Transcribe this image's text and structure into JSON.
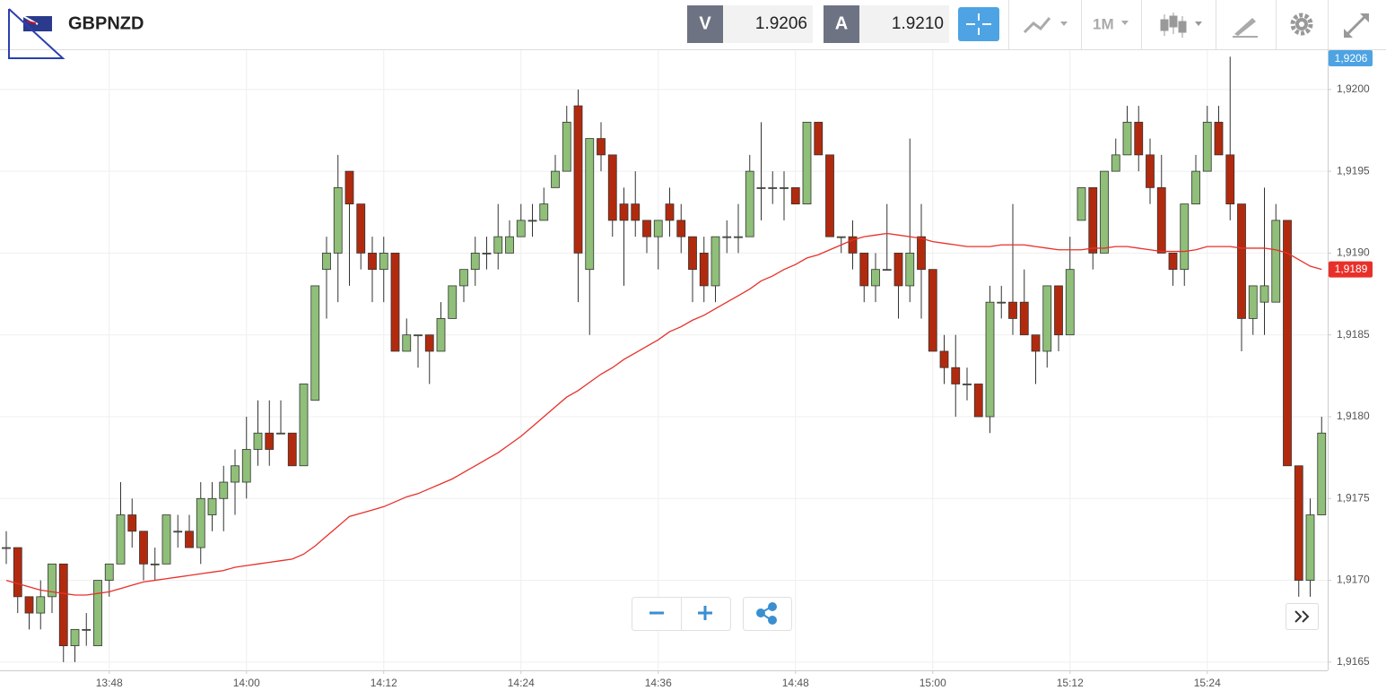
{
  "chart_data": {
    "type": "candlestick",
    "title": "GBPNZD",
    "x": [
      "13:39",
      "13:40",
      "13:41",
      "13:42",
      "13:43",
      "13:44",
      "13:45",
      "13:46",
      "13:47",
      "13:48",
      "13:49",
      "13:50",
      "13:51",
      "13:52",
      "13:53",
      "13:54",
      "13:55",
      "13:56",
      "13:57",
      "13:58",
      "13:59",
      "14:00",
      "14:01",
      "14:02",
      "14:03",
      "14:04",
      "14:05",
      "14:06",
      "14:07",
      "14:08",
      "14:09",
      "14:10",
      "14:11",
      "14:12",
      "14:13",
      "14:14",
      "14:15",
      "14:16",
      "14:17",
      "14:18",
      "14:19",
      "14:20",
      "14:21",
      "14:22",
      "14:23",
      "14:24",
      "14:25",
      "14:26",
      "14:27",
      "14:28",
      "14:29",
      "14:30",
      "14:31",
      "14:32",
      "14:33",
      "14:34",
      "14:35",
      "14:36",
      "14:37",
      "14:38",
      "14:39",
      "14:40",
      "14:41",
      "14:42",
      "14:43",
      "14:44",
      "14:45",
      "14:46",
      "14:47",
      "14:48",
      "14:49",
      "14:50",
      "14:51",
      "14:52",
      "14:53",
      "14:54",
      "14:55",
      "14:56",
      "14:57",
      "14:58",
      "14:59",
      "15:00",
      "15:01",
      "15:02",
      "15:03",
      "15:04",
      "15:05",
      "15:06",
      "15:07",
      "15:08",
      "15:09",
      "15:10",
      "15:11",
      "15:12",
      "15:13",
      "15:14",
      "15:15",
      "15:16",
      "15:17",
      "15:18",
      "15:19",
      "15:20",
      "15:21",
      "15:22",
      "15:23",
      "15:24",
      "15:25",
      "15:26",
      "15:27",
      "15:28",
      "15:29",
      "15:30",
      "15:31",
      "15:32",
      "15:33",
      "15:34"
    ],
    "open": [
      1.9172,
      1.9172,
      1.9169,
      1.9168,
      1.9169,
      1.9171,
      1.9166,
      1.9167,
      1.9166,
      1.917,
      1.9171,
      1.9174,
      1.9173,
      1.9171,
      1.9171,
      1.9173,
      1.9173,
      1.9172,
      1.9174,
      1.9175,
      1.9176,
      1.9176,
      1.9178,
      1.9179,
      1.9179,
      1.9179,
      1.9177,
      1.9181,
      1.9189,
      1.919,
      1.9195,
      1.9193,
      1.919,
      1.9189,
      1.919,
      1.9184,
      1.9185,
      1.9185,
      1.9184,
      1.9186,
      1.9188,
      1.9189,
      1.919,
      1.919,
      1.919,
      1.9191,
      1.9192,
      1.9192,
      1.9194,
      1.9195,
      1.9199,
      1.9189,
      1.9197,
      1.9196,
      1.9193,
      1.9193,
      1.9192,
      1.9191,
      1.9193,
      1.9192,
      1.9191,
      1.919,
      1.9188,
      1.9191,
      1.9191,
      1.9191,
      1.9194,
      1.9194,
      1.9194,
      1.9194,
      1.9193,
      1.9198,
      1.9196,
      1.9191,
      1.9191,
      1.919,
      1.9188,
      1.9189,
      1.919,
      1.9188,
      1.9191,
      1.9189,
      1.9184,
      1.9183,
      1.9182,
      1.9182,
      1.918,
      1.9187,
      1.9187,
      1.9187,
      1.9185,
      1.9184,
      1.9188,
      1.9185,
      1.9192,
      1.9194,
      1.919,
      1.9195,
      1.9196,
      1.9198,
      1.9196,
      1.9194,
      1.919,
      1.9189,
      1.9193,
      1.9195,
      1.9198,
      1.9196,
      1.9193,
      1.9186,
      1.9187,
      1.9187,
      1.9192,
      1.9177,
      1.917,
      1.9174
    ],
    "high": [
      1.9173,
      1.9172,
      1.9169,
      1.917,
      1.9171,
      1.9171,
      1.9167,
      1.9168,
      1.917,
      1.9171,
      1.9176,
      1.9175,
      1.9173,
      1.9172,
      1.9174,
      1.9174,
      1.9174,
      1.9176,
      1.9176,
      1.9177,
      1.9178,
      1.918,
      1.9181,
      1.9181,
      1.9181,
      1.9179,
      1.9182,
      1.9188,
      1.9191,
      1.9196,
      1.9195,
      1.9193,
      1.9191,
      1.9191,
      1.919,
      1.9186,
      1.9185,
      1.9185,
      1.9187,
      1.9188,
      1.9189,
      1.9191,
      1.9191,
      1.9193,
      1.9192,
      1.9193,
      1.9193,
      1.9194,
      1.9196,
      1.9199,
      1.92,
      1.9197,
      1.9198,
      1.9196,
      1.9194,
      1.9195,
      1.9192,
      1.9192,
      1.9194,
      1.9193,
      1.9191,
      1.9191,
      1.9191,
      1.9192,
      1.9193,
      1.9196,
      1.9198,
      1.9195,
      1.9195,
      1.9194,
      1.9198,
      1.9198,
      1.9196,
      1.9191,
      1.9192,
      1.919,
      1.919,
      1.9193,
      1.919,
      1.9197,
      1.9193,
      1.9189,
      1.9185,
      1.9185,
      1.9183,
      1.9182,
      1.9188,
      1.9188,
      1.9193,
      1.9189,
      1.9185,
      1.9188,
      1.9188,
      1.9191,
      1.9194,
      1.9194,
      1.9195,
      1.9197,
      1.9199,
      1.9199,
      1.9197,
      1.9196,
      1.919,
      1.9193,
      1.9196,
      1.9199,
      1.9199,
      1.9202,
      1.9193,
      1.9188,
      1.9194,
      1.9193,
      1.9192,
      1.9177,
      1.9175,
      1.918
    ],
    "low": [
      1.9171,
      1.9168,
      1.9167,
      1.9167,
      1.9168,
      1.9165,
      1.9165,
      1.9166,
      1.9166,
      1.9169,
      1.9171,
      1.9172,
      1.917,
      1.917,
      1.9171,
      1.9172,
      1.9172,
      1.9171,
      1.9173,
      1.9173,
      1.9174,
      1.9175,
      1.9177,
      1.9177,
      1.9179,
      1.9177,
      1.9177,
      1.9181,
      1.9186,
      1.9187,
      1.9188,
      1.9189,
      1.9187,
      1.9187,
      1.9184,
      1.9184,
      1.9183,
      1.9182,
      1.9184,
      1.9186,
      1.9187,
      1.9188,
      1.9189,
      1.9189,
      1.919,
      1.9191,
      1.9191,
      1.9192,
      1.9194,
      1.9195,
      1.9187,
      1.9185,
      1.9195,
      1.9191,
      1.9188,
      1.9191,
      1.919,
      1.9189,
      1.9191,
      1.919,
      1.9187,
      1.9187,
      1.9187,
      1.919,
      1.919,
      1.9191,
      1.9192,
      1.9193,
      1.9192,
      1.9193,
      1.9193,
      1.9196,
      1.9191,
      1.919,
      1.9189,
      1.9187,
      1.9187,
      1.9189,
      1.9186,
      1.9187,
      1.9186,
      1.9184,
      1.9182,
      1.918,
      1.9181,
      1.918,
      1.9179,
      1.9186,
      1.9185,
      1.9185,
      1.9182,
      1.9183,
      1.9184,
      1.9185,
      1.9192,
      1.9189,
      1.919,
      1.9195,
      1.9196,
      1.9195,
      1.9193,
      1.919,
      1.9188,
      1.9188,
      1.9193,
      1.9195,
      1.9196,
      1.9192,
      1.9184,
      1.9185,
      1.9185,
      1.9187,
      1.9177,
      1.9169,
      1.9169,
      1.9174
    ],
    "close": [
      1.9172,
      1.9169,
      1.9168,
      1.9169,
      1.9171,
      1.9166,
      1.9167,
      1.9167,
      1.917,
      1.9171,
      1.9174,
      1.9173,
      1.9171,
      1.9171,
      1.9174,
      1.9173,
      1.9172,
      1.9175,
      1.9175,
      1.9176,
      1.9177,
      1.9178,
      1.9179,
      1.9178,
      1.9179,
      1.9177,
      1.9182,
      1.9188,
      1.919,
      1.9194,
      1.9193,
      1.919,
      1.9189,
      1.919,
      1.9184,
      1.9185,
      1.9185,
      1.9184,
      1.9186,
      1.9188,
      1.9189,
      1.919,
      1.919,
      1.9191,
      1.9191,
      1.9192,
      1.9192,
      1.9193,
      1.9195,
      1.9198,
      1.919,
      1.9197,
      1.9196,
      1.9192,
      1.9192,
      1.9192,
      1.9191,
      1.9192,
      1.9192,
      1.9191,
      1.9189,
      1.9188,
      1.9191,
      1.9191,
      1.9191,
      1.9195,
      1.9194,
      1.9194,
      1.9194,
      1.9193,
      1.9198,
      1.9196,
      1.9191,
      1.9191,
      1.919,
      1.9188,
      1.9189,
      1.9189,
      1.9188,
      1.919,
      1.9189,
      1.9184,
      1.9183,
      1.9182,
      1.9182,
      1.918,
      1.9187,
      1.9187,
      1.9186,
      1.9185,
      1.9184,
      1.9188,
      1.9185,
      1.9189,
      1.9194,
      1.919,
      1.9195,
      1.9196,
      1.9198,
      1.9196,
      1.9194,
      1.919,
      1.9189,
      1.9193,
      1.9195,
      1.9198,
      1.9196,
      1.9193,
      1.9186,
      1.9188,
      1.9188,
      1.9192,
      1.9177,
      1.917,
      1.9174,
      1.9179
    ],
    "up_color": "#8fbf78",
    "down_color": "#b22a0e",
    "wick_color": "#333333",
    "ma": {
      "color": "#e8302a",
      "values": [
        1.917,
        1.91698,
        1.91696,
        1.91694,
        1.91693,
        1.91692,
        1.91691,
        1.91691,
        1.91692,
        1.91693,
        1.91695,
        1.91697,
        1.91699,
        1.917,
        1.91701,
        1.91702,
        1.91703,
        1.91704,
        1.91705,
        1.91706,
        1.91708,
        1.91709,
        1.9171,
        1.91711,
        1.91712,
        1.91713,
        1.91716,
        1.91721,
        1.91727,
        1.91733,
        1.91739,
        1.91741,
        1.91743,
        1.91745,
        1.91748,
        1.91751,
        1.91753,
        1.91756,
        1.91759,
        1.91762,
        1.91766,
        1.9177,
        1.91774,
        1.91778,
        1.91783,
        1.91788,
        1.91794,
        1.918,
        1.91806,
        1.91812,
        1.91816,
        1.91821,
        1.91826,
        1.9183,
        1.91835,
        1.91839,
        1.91843,
        1.91847,
        1.91852,
        1.91855,
        1.91859,
        1.91862,
        1.91866,
        1.9187,
        1.91874,
        1.91878,
        1.91883,
        1.91886,
        1.9189,
        1.91893,
        1.91897,
        1.91899,
        1.91902,
        1.91905,
        1.91908,
        1.9191,
        1.91911,
        1.91912,
        1.91911,
        1.9191,
        1.91909,
        1.91907,
        1.91906,
        1.91905,
        1.91904,
        1.91904,
        1.91904,
        1.91905,
        1.91905,
        1.91905,
        1.91904,
        1.91903,
        1.91902,
        1.91902,
        1.91902,
        1.91903,
        1.91903,
        1.91904,
        1.91904,
        1.91903,
        1.91902,
        1.91901,
        1.91901,
        1.91901,
        1.91902,
        1.91904,
        1.91904,
        1.91904,
        1.91903,
        1.91903,
        1.91903,
        1.91902,
        1.919,
        1.91896,
        1.91892,
        1.9189
      ]
    },
    "ylim": [
      1.91645,
      1.92024
    ],
    "yticks": [
      {
        "value": 1.9165,
        "label": "1,9165"
      },
      {
        "value": 1.917,
        "label": "1,9170"
      },
      {
        "value": 1.9175,
        "label": "1,9175"
      },
      {
        "value": 1.918,
        "label": "1,9180"
      },
      {
        "value": 1.9185,
        "label": "1,9185"
      },
      {
        "value": 1.919,
        "label": "1,9190"
      },
      {
        "value": 1.9195,
        "label": "1,9195"
      },
      {
        "value": 1.92,
        "label": "1,9200"
      }
    ],
    "xticks": [
      "13:48",
      "14:00",
      "14:12",
      "14:24",
      "14:36",
      "14:48",
      "15:00",
      "15:12",
      "15:24"
    ],
    "grid": true,
    "grid_color": "#efefef"
  },
  "toolbar": {
    "bid_label": "V",
    "bid": "1.9206",
    "ask_label": "A",
    "ask": "1.9210",
    "timeframe": "1M"
  },
  "price_tag": "1,9206",
  "ma_tag": "1,9189"
}
